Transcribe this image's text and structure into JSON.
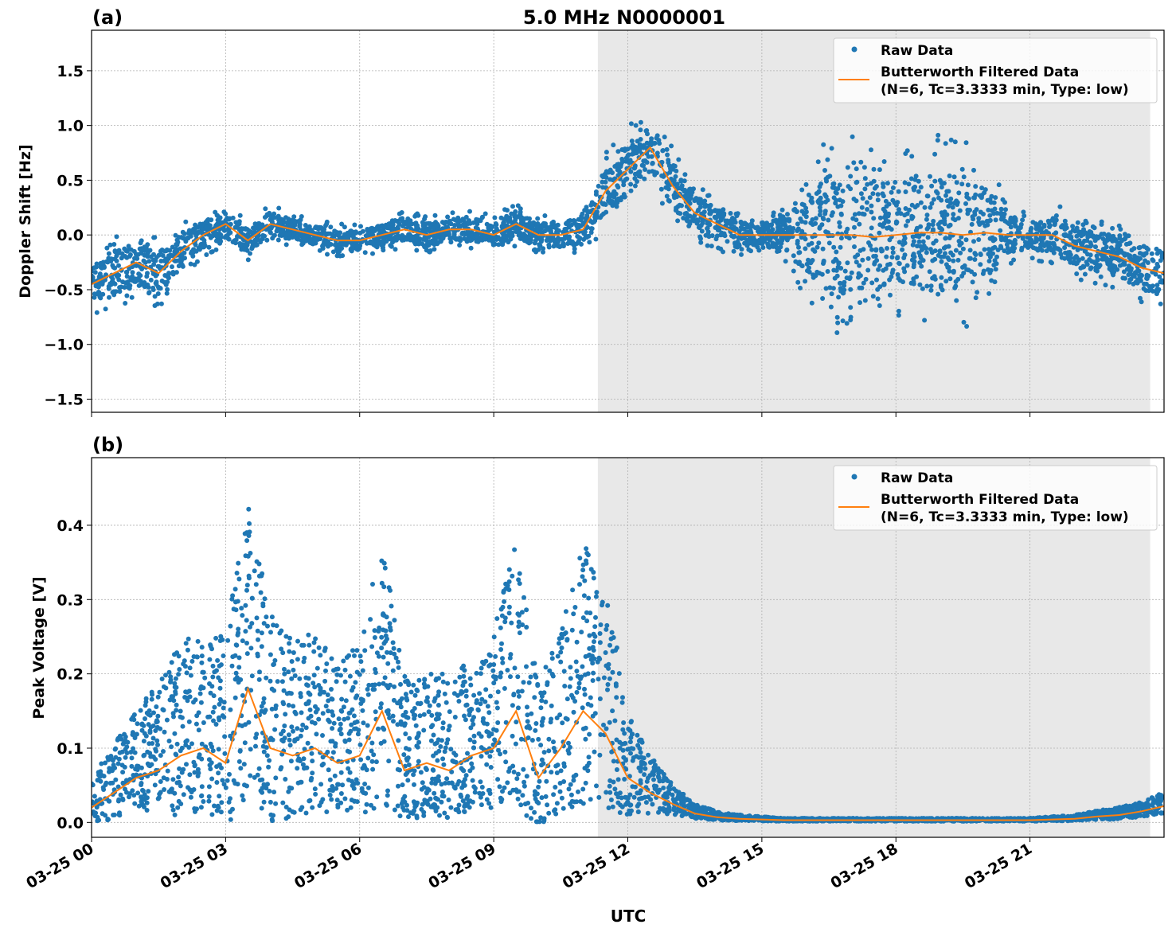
{
  "chart_data": [
    {
      "type": "scatter",
      "panel_label": "(a)",
      "title": "5.0 MHz N0000001",
      "ylabel": "Doppler Shift [Hz]",
      "xlabel": "",
      "xlim_hours": [
        0,
        24
      ],
      "ylim": [
        -1.62,
        1.87
      ],
      "yticks": [
        -1.5,
        -1.0,
        -0.5,
        0.0,
        0.5,
        1.0,
        1.5
      ],
      "ytick_labels": [
        "−1.5",
        "−1.0",
        "−0.5",
        "0.0",
        "0.5",
        "1.0",
        "1.5"
      ],
      "grid": true,
      "legend_position": "top-right",
      "shaded_interval_hours": [
        11.33,
        23.69
      ],
      "filtered_hours_step": 0.5,
      "series": [
        {
          "name": "Raw Data",
          "kind": "points",
          "color": "#1f77b4",
          "spread": [
            0.3,
            0.35,
            0.3,
            0.35,
            0.25,
            0.2,
            0.2,
            0.18,
            0.18,
            0.15,
            0.15,
            0.15,
            0.15,
            0.15,
            0.18,
            0.18,
            0.15,
            0.18,
            0.18,
            0.2,
            0.18,
            0.18,
            0.25,
            0.35,
            0.4,
            0.4,
            0.35,
            0.3,
            0.25,
            0.2,
            0.15,
            0.3,
            0.6,
            0.9,
            0.9,
            0.9,
            0.8,
            0.9,
            0.9,
            0.9,
            0.7,
            0.3,
            0.2,
            0.3,
            0.3,
            0.3,
            0.3,
            0.35,
            0.35
          ]
        },
        {
          "name": "Butterworth Filtered Data\n(N=6, Tc=3.3333 min, Type: low)",
          "kind": "line",
          "color": "#ff7f0e",
          "values": [
            -0.45,
            -0.35,
            -0.25,
            -0.35,
            -0.15,
            0.0,
            0.1,
            -0.05,
            0.1,
            0.05,
            0.0,
            -0.05,
            -0.05,
            0.0,
            0.05,
            0.0,
            0.05,
            0.05,
            0.0,
            0.1,
            0.0,
            0.0,
            0.05,
            0.4,
            0.6,
            0.8,
            0.45,
            0.2,
            0.1,
            0.0,
            0.0,
            0.0,
            0.0,
            0.0,
            0.0,
            -0.02,
            0.0,
            0.02,
            0.02,
            0.0,
            0.02,
            0.0,
            0.0,
            0.0,
            -0.1,
            -0.15,
            -0.2,
            -0.3,
            -0.35
          ]
        }
      ]
    },
    {
      "type": "scatter",
      "panel_label": "(b)",
      "title": "",
      "ylabel": "Peak Voltage [V]",
      "xlabel": "UTC",
      "xlim_hours": [
        0,
        24
      ],
      "ylim": [
        -0.02,
        0.491
      ],
      "yticks": [
        0.0,
        0.1,
        0.2,
        0.3,
        0.4
      ],
      "ytick_labels": [
        "0.0",
        "0.1",
        "0.2",
        "0.3",
        "0.4"
      ],
      "grid": true,
      "legend_position": "top-right",
      "shaded_interval_hours": [
        11.33,
        23.69
      ],
      "filtered_hours_step": 0.5,
      "series": [
        {
          "name": "Raw Data",
          "kind": "points",
          "color": "#1f77b4",
          "spread": [
            0.03,
            0.05,
            0.07,
            0.09,
            0.12,
            0.12,
            0.13,
            0.2,
            0.14,
            0.12,
            0.12,
            0.1,
            0.12,
            0.18,
            0.1,
            0.1,
            0.1,
            0.1,
            0.12,
            0.18,
            0.1,
            0.12,
            0.18,
            0.16,
            0.07,
            0.04,
            0.02,
            0.01,
            0.006,
            0.004,
            0.003,
            0.002,
            0.002,
            0.002,
            0.002,
            0.002,
            0.002,
            0.002,
            0.002,
            0.002,
            0.002,
            0.002,
            0.002,
            0.003,
            0.004,
            0.006,
            0.008,
            0.01,
            0.015
          ]
        },
        {
          "name": "Butterworth Filtered Data\n(N=6, Tc=3.3333 min, Type: low)",
          "kind": "line",
          "color": "#ff7f0e",
          "values": [
            0.02,
            0.04,
            0.06,
            0.07,
            0.09,
            0.1,
            0.08,
            0.18,
            0.1,
            0.09,
            0.1,
            0.08,
            0.09,
            0.15,
            0.07,
            0.08,
            0.07,
            0.09,
            0.1,
            0.15,
            0.06,
            0.1,
            0.15,
            0.12,
            0.06,
            0.04,
            0.025,
            0.012,
            0.007,
            0.005,
            0.004,
            0.003,
            0.003,
            0.003,
            0.003,
            0.003,
            0.003,
            0.003,
            0.003,
            0.003,
            0.003,
            0.003,
            0.003,
            0.004,
            0.005,
            0.008,
            0.01,
            0.015,
            0.022
          ]
        }
      ]
    }
  ],
  "xtick_labels": [
    "03-25 00",
    "03-25 03",
    "03-25 06",
    "03-25 09",
    "03-25 12",
    "03-25 15",
    "03-25 18",
    "03-25 21"
  ],
  "xtick_hours": [
    0,
    3,
    6,
    9,
    12,
    15,
    18,
    21
  ],
  "legend": {
    "raw": "Raw Data",
    "filt_line1": "Butterworth Filtered Data",
    "filt_line2": "(N=6, Tc=3.3333 min, Type: low)"
  },
  "colors": {
    "raw": "#1f77b4",
    "filtered": "#ff7f0e",
    "shade": "#e8e8e8"
  }
}
